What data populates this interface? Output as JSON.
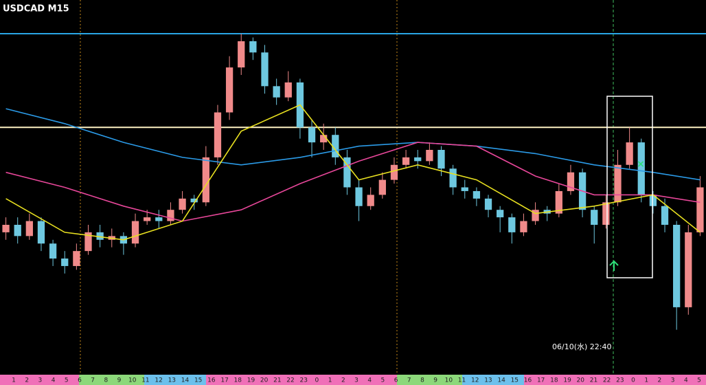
{
  "chart_data": {
    "type": "candlestick",
    "title": "USDCAD M15",
    "annotation": "06/10(水) 22:40",
    "ylim": [
      0,
      100
    ],
    "up_color": "#f08a8a",
    "down_color": "#6ec8e0",
    "candles": [
      [
        38,
        42,
        36,
        40
      ],
      [
        40,
        42,
        35,
        37
      ],
      [
        37,
        43,
        36,
        41
      ],
      [
        41,
        42,
        33,
        35
      ],
      [
        35,
        36,
        29,
        31
      ],
      [
        31,
        33,
        27,
        29
      ],
      [
        29,
        35,
        28,
        33
      ],
      [
        33,
        40,
        32,
        38
      ],
      [
        38,
        40,
        34,
        36
      ],
      [
        36,
        39,
        34,
        37
      ],
      [
        37,
        38,
        32,
        35
      ],
      [
        35,
        43,
        34,
        41
      ],
      [
        41,
        44,
        40,
        42
      ],
      [
        42,
        44,
        39,
        41
      ],
      [
        41,
        46,
        40,
        44
      ],
      [
        44,
        49,
        43,
        47
      ],
      [
        47,
        48,
        44,
        46
      ],
      [
        46,
        61,
        45,
        58
      ],
      [
        58,
        72,
        56,
        70
      ],
      [
        70,
        85,
        68,
        82
      ],
      [
        82,
        91,
        80,
        89
      ],
      [
        89,
        90,
        84,
        86
      ],
      [
        86,
        88,
        75,
        77
      ],
      [
        77,
        79,
        72,
        74
      ],
      [
        74,
        81,
        73,
        78
      ],
      [
        78,
        79,
        63,
        66
      ],
      [
        66,
        68,
        58,
        62
      ],
      [
        62,
        67,
        60,
        64
      ],
      [
        64,
        66,
        56,
        58
      ],
      [
        58,
        60,
        48,
        50
      ],
      [
        50,
        52,
        41,
        45
      ],
      [
        45,
        50,
        44,
        48
      ],
      [
        48,
        54,
        47,
        52
      ],
      [
        52,
        58,
        51,
        56
      ],
      [
        56,
        60,
        55,
        58
      ],
      [
        58,
        60,
        55,
        57
      ],
      [
        57,
        62,
        56,
        60
      ],
      [
        60,
        61,
        53,
        55
      ],
      [
        55,
        56,
        48,
        50
      ],
      [
        50,
        52,
        47,
        49
      ],
      [
        49,
        50,
        45,
        47
      ],
      [
        47,
        48,
        42,
        44
      ],
      [
        44,
        45,
        38,
        42
      ],
      [
        42,
        43,
        35,
        38
      ],
      [
        38,
        43,
        37,
        41
      ],
      [
        41,
        46,
        40,
        44
      ],
      [
        44,
        45,
        41,
        43
      ],
      [
        43,
        51,
        42,
        49
      ],
      [
        49,
        56,
        48,
        54
      ],
      [
        54,
        55,
        42,
        44
      ],
      [
        44,
        45,
        35,
        40
      ],
      [
        40,
        48,
        39,
        46
      ],
      [
        46,
        60,
        45,
        56
      ],
      [
        56,
        66,
        55,
        62
      ],
      [
        62,
        63,
        46,
        48
      ],
      [
        48,
        49,
        43,
        45
      ],
      [
        45,
        47,
        38,
        40
      ],
      [
        40,
        41,
        12,
        18
      ],
      [
        18,
        40,
        16,
        38
      ],
      [
        38,
        53,
        37,
        50
      ]
    ],
    "indicator_x": [
      0,
      5,
      10,
      15,
      20,
      25,
      30,
      35,
      40,
      45,
      50,
      55,
      59
    ],
    "series": [
      {
        "color": "#2b9be8",
        "values": [
          71,
          67,
          62,
          58,
          56,
          58,
          61,
          62,
          61,
          59,
          56,
          54,
          52
        ]
      },
      {
        "color": "#e8479a",
        "values": [
          54,
          50,
          45,
          41,
          44,
          51,
          57,
          62,
          61,
          53,
          48,
          48,
          46
        ]
      },
      {
        "color": "#e8e020",
        "values": [
          47,
          38,
          36,
          41,
          65,
          72,
          52,
          56,
          52,
          43,
          45,
          48,
          38
        ]
      }
    ],
    "levels": [
      {
        "value": 91,
        "color": "#2aa6e6"
      },
      {
        "value": 66,
        "color": "#fff3c4"
      }
    ],
    "time_labels": [
      1,
      2,
      3,
      4,
      5,
      6,
      7,
      8,
      9,
      10,
      11,
      12,
      13,
      14,
      15,
      16,
      17,
      18,
      19,
      20,
      21,
      22,
      23,
      0,
      1,
      2,
      3,
      4,
      5,
      6,
      7,
      8,
      9,
      10,
      11,
      12,
      13,
      14,
      15,
      16,
      17,
      18,
      19,
      20,
      21,
      22,
      23,
      0,
      1,
      2,
      3,
      4,
      5
    ]
  }
}
